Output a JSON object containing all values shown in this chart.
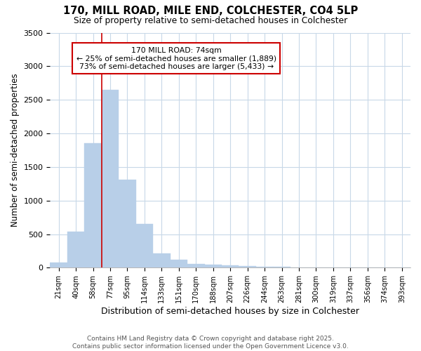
{
  "title_line1": "170, MILL ROAD, MILE END, COLCHESTER, CO4 5LP",
  "title_line2": "Size of property relative to semi-detached houses in Colchester",
  "xlabel": "Distribution of semi-detached houses by size in Colchester",
  "ylabel": "Number of semi-detached properties",
  "categories": [
    "21sqm",
    "40sqm",
    "58sqm",
    "77sqm",
    "95sqm",
    "114sqm",
    "133sqm",
    "151sqm",
    "170sqm",
    "188sqm",
    "207sqm",
    "226sqm",
    "244sqm",
    "263sqm",
    "281sqm",
    "300sqm",
    "319sqm",
    "337sqm",
    "356sqm",
    "374sqm",
    "393sqm"
  ],
  "bar_heights": [
    75,
    535,
    1850,
    2650,
    1310,
    650,
    215,
    115,
    55,
    45,
    35,
    20,
    15,
    10,
    5,
    3,
    2,
    1,
    1,
    1,
    0
  ],
  "bar_color": "#b8cfe8",
  "bar_edgecolor": "#b8cfe8",
  "bar_width": 1.0,
  "ylim": [
    0,
    3500
  ],
  "yticks": [
    0,
    500,
    1000,
    1500,
    2000,
    2500,
    3000,
    3500
  ],
  "property_line_x": 2.5,
  "property_line_color": "#cc0000",
  "annotation_text": "170 MILL ROAD: 74sqm\n← 25% of semi-detached houses are smaller (1,889)\n73% of semi-detached houses are larger (5,433) →",
  "annotation_box_facecolor": "#ffffff",
  "annotation_box_edgecolor": "#cc0000",
  "footer_line1": "Contains HM Land Registry data © Crown copyright and database right 2025.",
  "footer_line2": "Contains public sector information licensed under the Open Government Licence v3.0.",
  "bg_color": "#ffffff",
  "plot_bg_color": "#ffffff",
  "grid_color": "#c8d8e8"
}
